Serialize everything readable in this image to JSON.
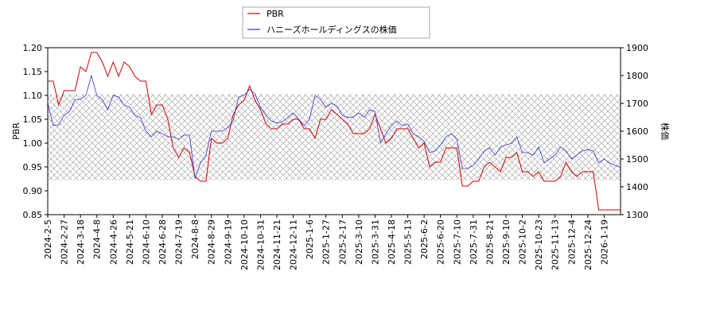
{
  "chart_data": {
    "type": "line",
    "legend_position": "upper center",
    "ylabel": "PBR",
    "y2label": "株価",
    "ylim": [
      0.85,
      1.2
    ],
    "yticks": [
      0.85,
      {
        "value": 0.9,
        "label": "0.90"
      },
      0.95,
      {
        "value": 1.0,
        "label": "1.00"
      },
      1.05,
      {
        "value": 1.1,
        "label": "1.10"
      },
      1.15,
      {
        "value": 1.2,
        "label": "1.20"
      }
    ],
    "y2lim": [
      1300,
      1900
    ],
    "y2ticks": [
      1300,
      1400,
      1500,
      1600,
      1700,
      1800,
      1900
    ],
    "shaded_range": [
      0.922,
      1.103
    ],
    "categories": [
      "2024-2-5",
      null,
      null,
      "2024-2-27",
      null,
      null,
      "2024-3-18",
      null,
      null,
      "2024-4-8",
      null,
      null,
      "2024-4-26",
      null,
      null,
      "2024-5-21",
      null,
      null,
      "2024-6-10",
      null,
      null,
      "2024-6-28",
      null,
      null,
      "2024-7-19",
      null,
      null,
      "2024-8-8",
      null,
      null,
      "2024-8-29",
      null,
      null,
      "2024-9-19",
      null,
      null,
      "2024-10-10",
      null,
      null,
      "2024-10-31",
      null,
      null,
      "2024-11-21",
      null,
      null,
      "2024-12-11",
      null,
      null,
      "2025-1-6",
      null,
      null,
      "2025-1-27",
      null,
      null,
      "2025-2-17",
      null,
      null,
      "2025-3-10",
      null,
      null,
      "2025-3-31",
      null,
      null,
      "2025-4-18",
      null,
      null,
      "2025-5-13",
      null,
      null,
      "2025-6-2",
      null,
      null,
      "2025-6-20",
      null,
      null,
      "2025-7-10",
      null,
      null,
      "2025-7-31",
      null,
      null,
      "2025-8-21",
      null,
      null,
      "2025-9-10",
      null,
      null,
      "2025-10-2",
      null,
      null,
      "2025-10-23",
      null,
      null,
      "2025-11-13",
      null,
      null,
      "2025-12-4",
      null,
      null,
      "2025-12-24",
      null,
      null,
      "2026-1-19",
      null,
      null,
      null
    ],
    "series": [
      {
        "name": "PBR",
        "color": "#cc0000",
        "values": [
          1.13,
          1.13,
          1.08,
          1.11,
          1.11,
          1.11,
          1.16,
          1.15,
          1.19,
          1.19,
          1.17,
          1.14,
          1.17,
          1.14,
          1.17,
          1.16,
          1.14,
          1.13,
          1.13,
          1.06,
          1.08,
          1.08,
          1.05,
          0.99,
          0.97,
          0.99,
          0.98,
          0.93,
          0.92,
          0.92,
          1.01,
          1.0,
          1.0,
          1.01,
          1.06,
          1.08,
          1.09,
          1.12,
          1.09,
          1.07,
          1.04,
          1.03,
          1.03,
          1.04,
          1.04,
          1.05,
          1.05,
          1.03,
          1.03,
          1.01,
          1.05,
          1.05,
          1.07,
          1.06,
          1.05,
          1.04,
          1.02,
          1.02,
          1.02,
          1.03,
          1.06,
          1.03,
          1.0,
          1.01,
          1.03,
          1.03,
          1.03,
          1.01,
          0.99,
          1.0,
          0.95,
          0.96,
          0.96,
          0.99,
          0.99,
          0.99,
          0.91,
          0.91,
          0.92,
          0.92,
          0.95,
          0.96,
          0.95,
          0.94,
          0.97,
          0.97,
          0.98,
          0.94,
          0.94,
          0.93,
          0.94,
          0.92,
          0.92,
          0.92,
          0.93,
          0.96,
          0.94,
          0.93,
          0.94,
          0.94,
          0.94,
          0.86,
          0.86,
          0.86,
          0.86,
          0.86
        ]
      },
      {
        "name": "ハニーズホールディングスの株価",
        "color": "#3333cc",
        "axis": "y2",
        "values": [
          1700,
          1620,
          1623,
          1657,
          1671,
          1714,
          1714,
          1729,
          1800,
          1729,
          1714,
          1677,
          1729,
          1723,
          1694,
          1686,
          1657,
          1649,
          1600,
          1580,
          1600,
          1591,
          1580,
          1580,
          1571,
          1586,
          1586,
          1429,
          1486,
          1514,
          1600,
          1600,
          1600,
          1614,
          1637,
          1723,
          1729,
          1751,
          1734,
          1686,
          1657,
          1637,
          1629,
          1634,
          1649,
          1666,
          1643,
          1620,
          1643,
          1729,
          1714,
          1686,
          1700,
          1691,
          1657,
          1649,
          1651,
          1666,
          1649,
          1677,
          1671,
          1557,
          1591,
          1620,
          1637,
          1620,
          1626,
          1591,
          1580,
          1563,
          1523,
          1529,
          1551,
          1580,
          1591,
          1571,
          1466,
          1466,
          1477,
          1500,
          1529,
          1540,
          1514,
          1543,
          1551,
          1557,
          1580,
          1523,
          1523,
          1514,
          1543,
          1486,
          1500,
          1514,
          1543,
          1529,
          1500,
          1514,
          1529,
          1534,
          1529,
          1486,
          1500,
          1486,
          1477,
          1471
        ]
      }
    ]
  }
}
